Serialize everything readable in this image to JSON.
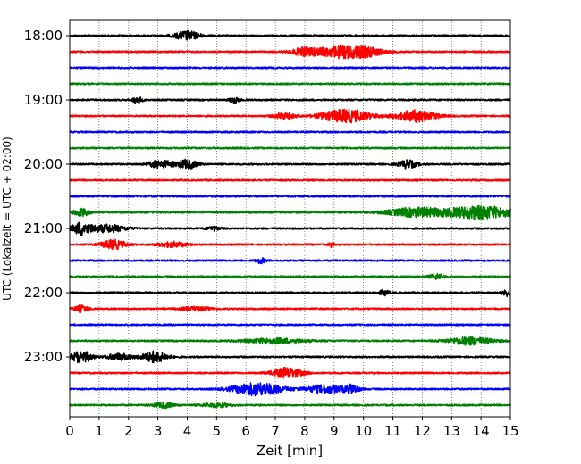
{
  "chart_data": {
    "type": "line",
    "title": "",
    "xlabel": "Zeit  [min]",
    "ylabel": "UTC (Lokalzeit = UTC + 02:00)",
    "xlim": [
      0,
      15
    ],
    "x_ticks": [
      "0",
      "1",
      "2",
      "3",
      "4",
      "5",
      "6",
      "7",
      "8",
      "9",
      "10",
      "11",
      "12",
      "13",
      "14",
      "15"
    ],
    "y_tick_labels": [
      "18:00",
      "19:00",
      "20:00",
      "21:00",
      "22:00",
      "23:00"
    ],
    "grid": "vertical dotted lines at each minute",
    "trace_colors": [
      "#000000",
      "#ff0000",
      "#0000ff",
      "#008000"
    ],
    "series": [
      {
        "start": "18:00",
        "color": "#000000",
        "events": [
          [
            4.0,
            0.5,
            0.7
          ]
        ]
      },
      {
        "start": "18:15",
        "color": "#ff0000",
        "events": [
          [
            8.0,
            0.5,
            0.6
          ],
          [
            9.3,
            1.0,
            1.0
          ],
          [
            10.2,
            0.6,
            0.5
          ]
        ]
      },
      {
        "start": "18:30",
        "color": "#0000ff",
        "events": []
      },
      {
        "start": "18:45",
        "color": "#008000",
        "events": []
      },
      {
        "start": "19:00",
        "color": "#000000",
        "events": [
          [
            2.3,
            0.2,
            0.5
          ],
          [
            5.6,
            0.2,
            0.4
          ]
        ]
      },
      {
        "start": "19:15",
        "color": "#ff0000",
        "events": [
          [
            7.3,
            0.4,
            0.5
          ],
          [
            9.4,
            1.0,
            1.0
          ],
          [
            11.8,
            0.8,
            0.9
          ]
        ]
      },
      {
        "start": "19:30",
        "color": "#0000ff",
        "events": []
      },
      {
        "start": "19:45",
        "color": "#008000",
        "events": []
      },
      {
        "start": "20:00",
        "color": "#000000",
        "events": [
          [
            3.1,
            0.5,
            0.6
          ],
          [
            4.0,
            0.4,
            0.7
          ],
          [
            11.5,
            0.4,
            0.6
          ]
        ]
      },
      {
        "start": "20:15",
        "color": "#ff0000",
        "events": []
      },
      {
        "start": "20:30",
        "color": "#0000ff",
        "events": []
      },
      {
        "start": "20:45",
        "color": "#008000",
        "events": [
          [
            0.4,
            0.3,
            0.6
          ],
          [
            11.8,
            1.2,
            0.7
          ],
          [
            14.0,
            1.4,
            1.0
          ]
        ]
      },
      {
        "start": "21:00",
        "color": "#000000",
        "events": [
          [
            0.4,
            0.4,
            1.0
          ],
          [
            1.3,
            0.7,
            0.6
          ],
          [
            4.9,
            0.3,
            0.3
          ]
        ]
      },
      {
        "start": "21:15",
        "color": "#ff0000",
        "events": [
          [
            1.5,
            0.5,
            0.7
          ],
          [
            3.5,
            0.6,
            0.4
          ],
          [
            8.9,
            0.1,
            0.4
          ]
        ]
      },
      {
        "start": "21:30",
        "color": "#0000ff",
        "events": [
          [
            6.5,
            0.2,
            0.4
          ]
        ]
      },
      {
        "start": "21:45",
        "color": "#008000",
        "events": [
          [
            12.5,
            0.3,
            0.4
          ]
        ]
      },
      {
        "start": "22:00",
        "color": "#000000",
        "events": [
          [
            10.7,
            0.2,
            0.4
          ],
          [
            14.9,
            0.2,
            0.5
          ]
        ]
      },
      {
        "start": "22:15",
        "color": "#ff0000",
        "events": [
          [
            0.4,
            0.3,
            0.5
          ],
          [
            4.3,
            0.6,
            0.3
          ]
        ]
      },
      {
        "start": "22:30",
        "color": "#0000ff",
        "events": []
      },
      {
        "start": "22:45",
        "color": "#008000",
        "events": [
          [
            7.0,
            1.2,
            0.4
          ],
          [
            13.6,
            0.9,
            0.6
          ]
        ]
      },
      {
        "start": "23:00",
        "color": "#000000",
        "events": [
          [
            0.4,
            0.4,
            1.0
          ],
          [
            1.7,
            0.5,
            0.5
          ],
          [
            2.9,
            0.5,
            0.9
          ]
        ]
      },
      {
        "start": "23:15",
        "color": "#ff0000",
        "events": [
          [
            7.4,
            0.6,
            0.8
          ]
        ]
      },
      {
        "start": "23:30",
        "color": "#0000ff",
        "events": [
          [
            6.4,
            1.0,
            1.0
          ],
          [
            8.7,
            0.8,
            0.6
          ],
          [
            9.6,
            0.3,
            0.6
          ]
        ]
      },
      {
        "start": "23:45",
        "color": "#008000",
        "events": [
          [
            3.2,
            0.4,
            0.4
          ],
          [
            5.0,
            0.6,
            0.3
          ]
        ]
      }
    ]
  }
}
